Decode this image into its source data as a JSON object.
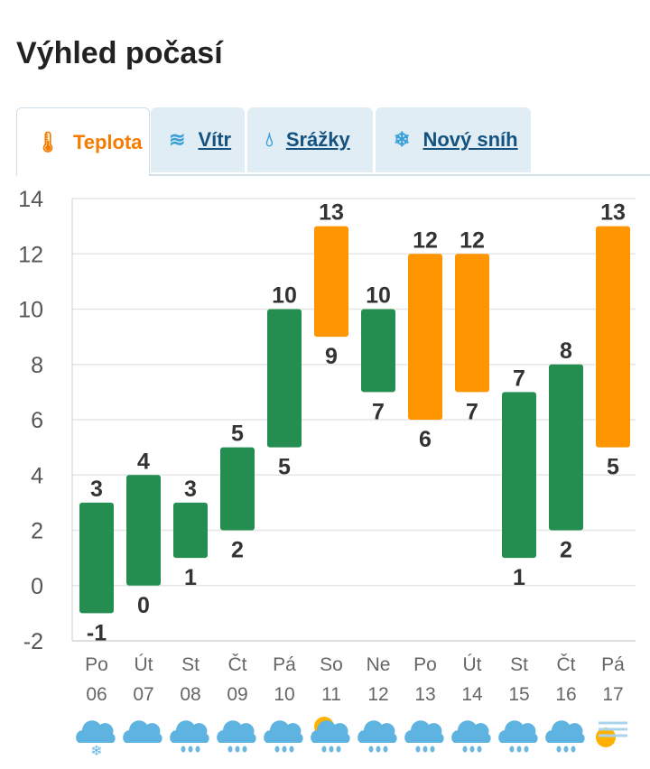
{
  "title": "Výhled počasí",
  "tabs": [
    {
      "label": "Teplota",
      "icon": "thermometer-icon",
      "active": true
    },
    {
      "label": "Vítr",
      "icon": "wind-icon",
      "active": false
    },
    {
      "label": "Srážky",
      "icon": "drop-icon",
      "active": false
    },
    {
      "label": "Nový sníh",
      "icon": "snowflake-icon",
      "active": false
    }
  ],
  "colors": {
    "normal": "#238e4f",
    "warm": "#ff9500",
    "accent": "#f57c00"
  },
  "chart_data": {
    "type": "bar",
    "subtype": "floating-range",
    "yticks": [
      14,
      12,
      10,
      8,
      6,
      4,
      2,
      0,
      -2
    ],
    "ylim": [
      -2,
      14
    ],
    "grid": true,
    "categories": [
      {
        "day": "Po",
        "date": "06",
        "min": -1,
        "max": 3,
        "warm": false,
        "icon": "snow-cloud-icon"
      },
      {
        "day": "Út",
        "date": "07",
        "min": 0,
        "max": 4,
        "warm": false,
        "icon": "partly-cloudy-icon"
      },
      {
        "day": "St",
        "date": "08",
        "min": 1,
        "max": 3,
        "warm": false,
        "icon": "rain-cloud-icon"
      },
      {
        "day": "Čt",
        "date": "09",
        "min": 2,
        "max": 5,
        "warm": false,
        "icon": "rain-cloud-icon"
      },
      {
        "day": "Pá",
        "date": "10",
        "min": 5,
        "max": 10,
        "warm": false,
        "icon": "rain-cloud-icon"
      },
      {
        "day": "So",
        "date": "11",
        "min": 9,
        "max": 13,
        "warm": true,
        "icon": "sun-rain-cloud-icon"
      },
      {
        "day": "Ne",
        "date": "12",
        "min": 7,
        "max": 10,
        "warm": false,
        "icon": "rain-cloud-icon"
      },
      {
        "day": "Po",
        "date": "13",
        "min": 6,
        "max": 12,
        "warm": true,
        "icon": "rain-cloud-icon"
      },
      {
        "day": "Út",
        "date": "14",
        "min": 7,
        "max": 12,
        "warm": true,
        "icon": "rain-cloud-icon"
      },
      {
        "day": "St",
        "date": "15",
        "min": 1,
        "max": 7,
        "warm": false,
        "icon": "rain-cloud-icon"
      },
      {
        "day": "Čt",
        "date": "16",
        "min": 2,
        "max": 8,
        "warm": false,
        "icon": "rain-cloud-icon"
      },
      {
        "day": "Pá",
        "date": "17",
        "min": 5,
        "max": 13,
        "warm": true,
        "icon": "sun-fog-icon"
      }
    ]
  }
}
